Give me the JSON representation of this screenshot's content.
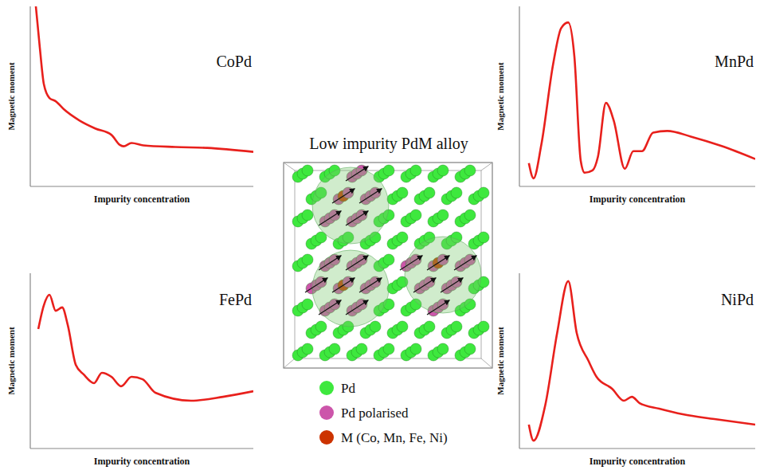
{
  "chart_data": [
    {
      "type": "line",
      "title": "CoPd",
      "x_label": "Impurity concentration",
      "y_label": "Magnetic moment",
      "tick_labels": false,
      "color": "#e8201c",
      "xlim": [
        0,
        100
      ],
      "ylim": [
        0,
        100
      ],
      "x": [
        2.5,
        4.3,
        6.1,
        8.6,
        11.4,
        15,
        22.1,
        29.3,
        36.4,
        40,
        41.8,
        45.4,
        50.7,
        65,
        79.3,
        100
      ],
      "values": [
        100,
        76.8,
        56.7,
        49.1,
        47.3,
        42.9,
        36.6,
        32.1,
        28.6,
        23.2,
        22.3,
        24.1,
        22.8,
        21.9,
        21.4,
        19.2
      ]
    },
    {
      "type": "line",
      "title": "MnPd",
      "x_label": "Impurity concentration",
      "y_label": "Magnetic moment",
      "tick_labels": false,
      "color": "#e8201c",
      "xlim": [
        0,
        100
      ],
      "ylim": [
        0,
        100
      ],
      "x": [
        4,
        6,
        9.3,
        14.3,
        17.7,
        20.7,
        23.3,
        26,
        27.7,
        31,
        33.3,
        36.7,
        40,
        44.7,
        48.3,
        52,
        56.7,
        62.7,
        72.7,
        86,
        100
      ],
      "values": [
        12.9,
        4.5,
        23.2,
        67.9,
        87.9,
        91.1,
        72.3,
        14.3,
        7.6,
        8.9,
        16.5,
        46.4,
        36.6,
        9.8,
        19.6,
        19.6,
        29.9,
        30.8,
        27.7,
        22.3,
        15.2
      ]
    },
    {
      "type": "line",
      "title": "FePd",
      "x_label": "Impurity concentration",
      "y_label": "Magnetic moment",
      "tick_labels": false,
      "color": "#e8201c",
      "xlim": [
        0,
        100
      ],
      "ylim": [
        0,
        100
      ],
      "x": [
        3.6,
        6.1,
        8.6,
        11.4,
        14.3,
        16.8,
        20.4,
        23.9,
        28.6,
        32.1,
        36.4,
        40.7,
        45.4,
        50.4,
        56.1,
        72.1,
        86.4,
        100
      ],
      "values": [
        68.2,
        81.8,
        87.7,
        78.6,
        80.5,
        70.5,
        47.7,
        42.3,
        37.3,
        43.2,
        40.9,
        35.5,
        40.9,
        39.5,
        31.8,
        27.3,
        29.5,
        32.7
      ]
    },
    {
      "type": "line",
      "title": "NiPd",
      "x_label": "Impurity concentration",
      "y_label": "Magnetic moment",
      "tick_labels": false,
      "color": "#e8201c",
      "xlim": [
        0,
        100
      ],
      "ylim": [
        0,
        100
      ],
      "x": [
        4,
        6,
        11,
        16,
        20.7,
        24.3,
        29.3,
        32.7,
        39.3,
        44.3,
        47.7,
        51,
        59.3,
        69.3,
        82.7,
        100
      ],
      "values": [
        13.6,
        4.5,
        25,
        65.9,
        95.5,
        65.9,
        50,
        40.9,
        34.1,
        27.3,
        29.5,
        25.9,
        22.7,
        19.5,
        16.8,
        13.6
      ]
    }
  ],
  "diagram": {
    "title": "Low impurity PdM alloy",
    "legend": [
      {
        "label": "Pd",
        "color": "#3ee83e"
      },
      {
        "label": "Pd polarised",
        "color": "#cc55aa"
      },
      {
        "label": "M (Co, Mn, Fe, Ni)",
        "color": "#cc3300"
      }
    ]
  }
}
